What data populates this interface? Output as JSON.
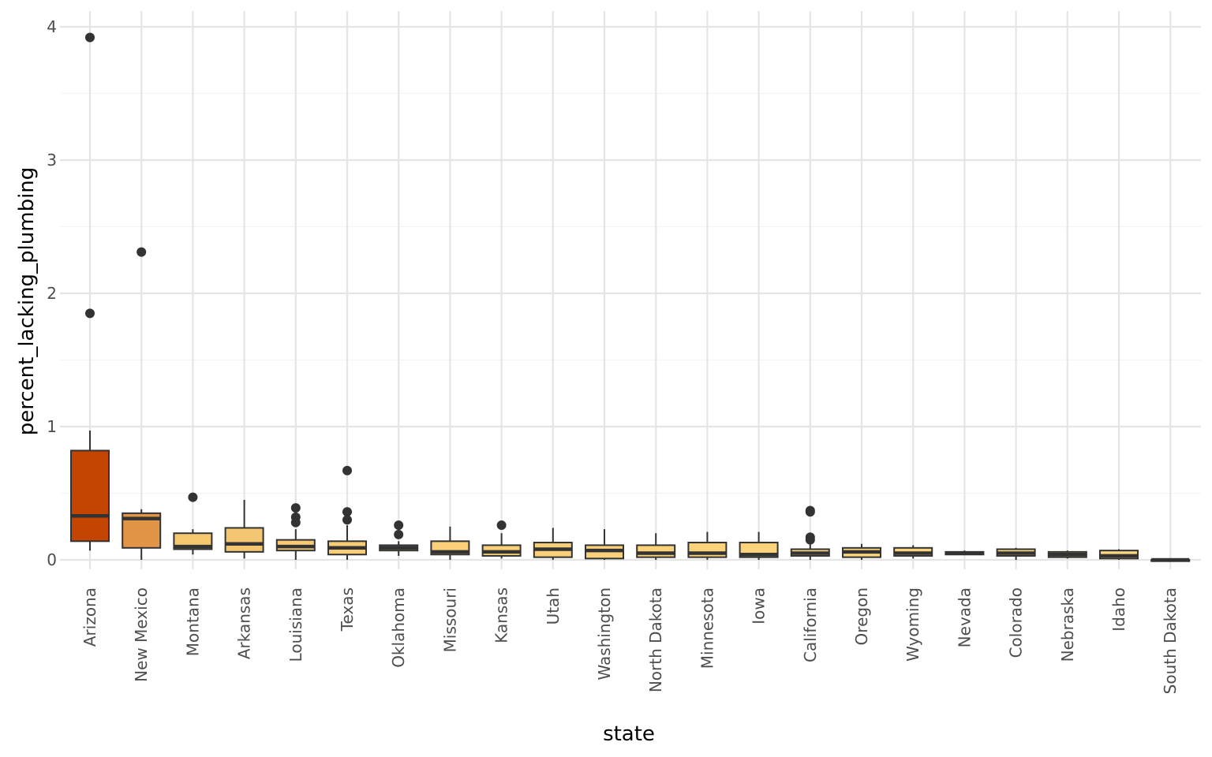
{
  "chart_data": {
    "type": "box",
    "title": "",
    "xlabel": "state",
    "ylabel": "percent_lacking_plumbing",
    "ylim": [
      -0.04,
      4.1
    ],
    "yticks": [
      0,
      1,
      2,
      3,
      4
    ],
    "grid": true,
    "legend": "none",
    "fill_scale": {
      "low": "#fcd67f",
      "high": "#c43f00",
      "low_value": 0.05,
      "high_value": 0.33
    },
    "categories": [
      "Arizona",
      "New Mexico",
      "Montana",
      "Arkansas",
      "Louisiana",
      "Texas",
      "Oklahoma",
      "Missouri",
      "Kansas",
      "Utah",
      "Washington",
      "North Dakota",
      "Minnesota",
      "Iowa",
      "California",
      "Oregon",
      "Wyoming",
      "Nevada",
      "Colorado",
      "Nebraska",
      "Idaho",
      "South Dakota"
    ],
    "series": [
      {
        "state": "Arizona",
        "whisker_low": 0.07,
        "q1": 0.14,
        "median": 0.33,
        "q3": 0.82,
        "whisker_high": 0.97,
        "outliers": [
          1.85,
          3.92
        ],
        "fill": "#c44500"
      },
      {
        "state": "New Mexico",
        "whisker_low": 0.0,
        "q1": 0.09,
        "median": 0.31,
        "q3": 0.35,
        "whisker_high": 0.38,
        "outliers": [
          2.31
        ],
        "fill": "#e29447"
      },
      {
        "state": "Montana",
        "whisker_low": 0.04,
        "q1": 0.08,
        "median": 0.1,
        "q3": 0.2,
        "whisker_high": 0.23,
        "outliers": [
          0.47
        ],
        "fill": "#f5c76f"
      },
      {
        "state": "Arkansas",
        "whisker_low": 0.01,
        "q1": 0.06,
        "median": 0.12,
        "q3": 0.24,
        "whisker_high": 0.45,
        "outliers": [],
        "fill": "#f4c672"
      },
      {
        "state": "Louisiana",
        "whisker_low": 0.0,
        "q1": 0.07,
        "median": 0.1,
        "q3": 0.15,
        "whisker_high": 0.23,
        "outliers": [
          0.28,
          0.32,
          0.39
        ],
        "fill": "#f6ca74"
      },
      {
        "state": "Texas",
        "whisker_low": 0.0,
        "q1": 0.04,
        "median": 0.09,
        "q3": 0.14,
        "whisker_high": 0.26,
        "outliers": [
          0.3,
          0.36,
          0.67
        ],
        "fill": "#f8cd76"
      },
      {
        "state": "Oklahoma",
        "whisker_low": 0.03,
        "q1": 0.07,
        "median": 0.09,
        "q3": 0.11,
        "whisker_high": 0.14,
        "outliers": [
          0.19,
          0.26
        ],
        "fill": "#f8ce77"
      },
      {
        "state": "Missouri",
        "whisker_low": 0.0,
        "q1": 0.04,
        "median": 0.06,
        "q3": 0.14,
        "whisker_high": 0.25,
        "outliers": [],
        "fill": "#f9d078"
      },
      {
        "state": "Kansas",
        "whisker_low": 0.01,
        "q1": 0.03,
        "median": 0.06,
        "q3": 0.11,
        "whisker_high": 0.2,
        "outliers": [
          0.26
        ],
        "fill": "#f9d078"
      },
      {
        "state": "Utah",
        "whisker_low": 0.0,
        "q1": 0.02,
        "median": 0.08,
        "q3": 0.13,
        "whisker_high": 0.24,
        "outliers": [],
        "fill": "#f9d079"
      },
      {
        "state": "Washington",
        "whisker_low": 0.0,
        "q1": 0.01,
        "median": 0.07,
        "q3": 0.11,
        "whisker_high": 0.23,
        "outliers": [],
        "fill": "#f9d17a"
      },
      {
        "state": "North Dakota",
        "whisker_low": 0.0,
        "q1": 0.02,
        "median": 0.05,
        "q3": 0.11,
        "whisker_high": 0.2,
        "outliers": [],
        "fill": "#fad27a"
      },
      {
        "state": "Minnesota",
        "whisker_low": 0.0,
        "q1": 0.02,
        "median": 0.05,
        "q3": 0.13,
        "whisker_high": 0.21,
        "outliers": [],
        "fill": "#fad37b"
      },
      {
        "state": "Iowa",
        "whisker_low": 0.0,
        "q1": 0.02,
        "median": 0.04,
        "q3": 0.13,
        "whisker_high": 0.21,
        "outliers": [],
        "fill": "#fad37b"
      },
      {
        "state": "California",
        "whisker_low": 0.0,
        "q1": 0.03,
        "median": 0.05,
        "q3": 0.08,
        "whisker_high": 0.13,
        "outliers": [
          0.15,
          0.17,
          0.36,
          0.37
        ],
        "fill": "#fad47c"
      },
      {
        "state": "Oregon",
        "whisker_low": 0.0,
        "q1": 0.02,
        "median": 0.06,
        "q3": 0.09,
        "whisker_high": 0.12,
        "outliers": [],
        "fill": "#fad47c"
      },
      {
        "state": "Wyoming",
        "whisker_low": 0.01,
        "q1": 0.03,
        "median": 0.05,
        "q3": 0.09,
        "whisker_high": 0.11,
        "outliers": [],
        "fill": "#fbd47d"
      },
      {
        "state": "Nevada",
        "whisker_low": 0.04,
        "q1": 0.04,
        "median": 0.05,
        "q3": 0.06,
        "whisker_high": 0.07,
        "outliers": [],
        "fill": "#fbd57d"
      },
      {
        "state": "Colorado",
        "whisker_low": 0.0,
        "q1": 0.03,
        "median": 0.05,
        "q3": 0.08,
        "whisker_high": 0.09,
        "outliers": [],
        "fill": "#fbd57d"
      },
      {
        "state": "Nebraska",
        "whisker_low": 0.01,
        "q1": 0.02,
        "median": 0.04,
        "q3": 0.06,
        "whisker_high": 0.07,
        "outliers": [],
        "fill": "#fbd57e"
      },
      {
        "state": "Idaho",
        "whisker_low": 0.0,
        "q1": 0.01,
        "median": 0.03,
        "q3": 0.07,
        "whisker_high": 0.08,
        "outliers": [],
        "fill": "#fbd67e"
      },
      {
        "state": "South Dakota",
        "whisker_low": -0.01,
        "q1": -0.01,
        "median": 0.0,
        "q3": 0.0,
        "whisker_high": 0.01,
        "outliers": [],
        "fill": "#fcd67f"
      }
    ]
  },
  "colors": {
    "background": "#ffffff",
    "gridline": "#e5e5e5",
    "box_outline": "#333333",
    "outlier": "#333333",
    "tick_text": "#4d4d4d",
    "title_text": "#000000"
  }
}
